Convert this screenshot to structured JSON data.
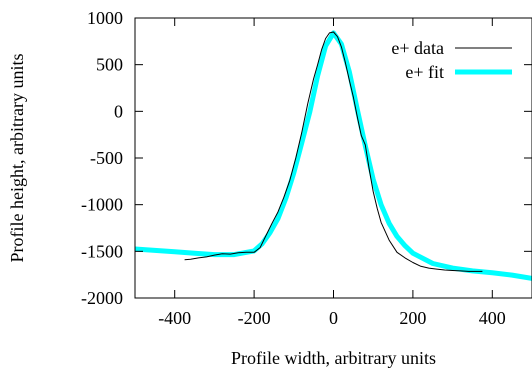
{
  "chart_data": {
    "type": "line",
    "title": "",
    "xlabel": "Profile width, arbitrary units",
    "ylabel": "Profile height, arbitrary units",
    "xlim": [
      -500,
      500
    ],
    "ylim": [
      -2000,
      1000
    ],
    "xticks": [
      -400,
      -200,
      0,
      200,
      400
    ],
    "yticks": [
      1000,
      500,
      0,
      -500,
      -1000,
      -1500,
      -2000
    ],
    "grid": false,
    "legend_position": "top-right",
    "series": [
      {
        "name": "e+ data",
        "color": "#000000",
        "style": "thin-solid",
        "x": [
          -375,
          -360,
          -340,
          -320,
          -300,
          -280,
          -260,
          -240,
          -220,
          -200,
          -185,
          -170,
          -155,
          -140,
          -125,
          -110,
          -95,
          -80,
          -65,
          -50,
          -40,
          -30,
          -20,
          -10,
          0,
          10,
          20,
          30,
          40,
          50,
          60,
          70,
          80,
          90,
          100,
          110,
          120,
          140,
          160,
          180,
          200,
          220,
          240,
          260,
          280,
          300,
          320,
          340,
          360,
          375
        ],
        "y": [
          -1590,
          -1585,
          -1570,
          -1560,
          -1540,
          -1525,
          -1530,
          -1515,
          -1510,
          -1510,
          -1460,
          -1330,
          -1200,
          -1080,
          -920,
          -740,
          -500,
          -230,
          80,
          350,
          500,
          660,
          780,
          840,
          850,
          800,
          690,
          520,
          330,
          150,
          -60,
          -260,
          -360,
          -620,
          -860,
          -1040,
          -1190,
          -1380,
          -1510,
          -1570,
          -1620,
          -1660,
          -1680,
          -1690,
          -1700,
          -1705,
          -1710,
          -1715,
          -1715,
          -1715
        ]
      },
      {
        "name": "e+ fit",
        "color": "#00ffff",
        "style": "thick-solid",
        "x": [
          -500,
          -450,
          -400,
          -350,
          -300,
          -250,
          -200,
          -180,
          -160,
          -140,
          -120,
          -100,
          -80,
          -60,
          -40,
          -20,
          0,
          20,
          40,
          60,
          80,
          100,
          120,
          140,
          160,
          180,
          200,
          250,
          300,
          350,
          400,
          450,
          500
        ],
        "y": [
          -1475,
          -1490,
          -1505,
          -1520,
          -1535,
          -1535,
          -1495,
          -1420,
          -1300,
          -1150,
          -930,
          -660,
          -340,
          -10,
          380,
          700,
          840,
          720,
          420,
          20,
          -370,
          -730,
          -1000,
          -1200,
          -1340,
          -1440,
          -1520,
          -1630,
          -1680,
          -1710,
          -1730,
          -1755,
          -1790
        ]
      }
    ]
  }
}
